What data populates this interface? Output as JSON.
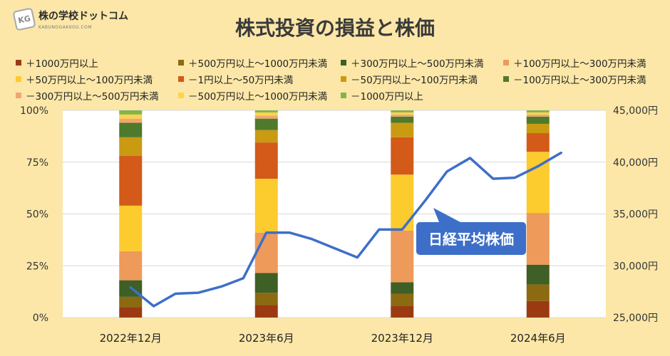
{
  "logo": {
    "badge": "KG",
    "name": "株の学校ドットコム",
    "sub": "KABUNOGAKKOU.COM"
  },
  "title": "株式投資の損益と株価",
  "legend": [
    {
      "label": "＋1000万円以上",
      "color": "#9B3A12"
    },
    {
      "label": "＋500万円以上～1000万円未満",
      "color": "#8C6A12"
    },
    {
      "label": "＋300万円以上～500万円未満",
      "color": "#3E5F26"
    },
    {
      "label": "＋100万円以上～300万円未満",
      "color": "#EE9A5A"
    },
    {
      "label": "＋50万円以上～100万円未満",
      "color": "#FCCB2E"
    },
    {
      "label": "－1円以上～50万円未満",
      "color": "#D35A19"
    },
    {
      "label": "－50万円以上～100万円未満",
      "color": "#C99A12"
    },
    {
      "label": "－100万円以上～300万円未満",
      "color": "#4E7A2C"
    },
    {
      "label": "－300万円以上～500万円未満",
      "color": "#F0A670"
    },
    {
      "label": "－500万円以上～1000万円未満",
      "color": "#FDD44A"
    },
    {
      "label": "－1000万円以上",
      "color": "#82B548"
    }
  ],
  "chart_data": {
    "type": "bar",
    "stacked": true,
    "categories": [
      "2022年12月",
      "2023年6月",
      "2023年12月",
      "2024年6月"
    ],
    "y_left": {
      "ticks": [
        "0%",
        "25%",
        "50%",
        "75%",
        "100%"
      ],
      "ylim": [
        0,
        100
      ]
    },
    "y_right": {
      "ticks": [
        "25,000円",
        "30,000円",
        "35,000円",
        "40,000円",
        "45,000円"
      ],
      "ylim": [
        25000,
        45000
      ]
    },
    "series": [
      {
        "name": "＋1000万円以上",
        "values": [
          5,
          6,
          5.5,
          8
        ]
      },
      {
        "name": "＋500万円以上～1000万円未満",
        "values": [
          5,
          6,
          6,
          8
        ]
      },
      {
        "name": "＋300万円以上～500万円未満",
        "values": [
          8,
          9.5,
          5.5,
          9.5
        ]
      },
      {
        "name": "＋100万円以上～300万円未満",
        "values": [
          14,
          19.5,
          25,
          25
        ]
      },
      {
        "name": "＋50万円以上～100万円未満",
        "values": [
          22,
          26,
          27,
          29.5
        ]
      },
      {
        "name": "－1円以上～50万円未満",
        "values": [
          24,
          17.5,
          18,
          9
        ]
      },
      {
        "name": "－50万円以上～100万円未満",
        "values": [
          9,
          6,
          7,
          4.5
        ]
      },
      {
        "name": "－100万円以上～300万円未満",
        "values": [
          7,
          5.5,
          3,
          3.5
        ]
      },
      {
        "name": "－300万円以上～500万円未満",
        "values": [
          2,
          1.5,
          1,
          1
        ]
      },
      {
        "name": "－500万円以上～1000万円未満",
        "values": [
          2,
          1.5,
          1,
          1
        ]
      },
      {
        "name": "－1000万円以上",
        "values": [
          2,
          1,
          1,
          1
        ]
      }
    ],
    "line": {
      "name": "日経平均株価",
      "color": "#3D6FC9",
      "points": [
        {
          "x": 0,
          "y": 27900
        },
        {
          "x": 0.17,
          "y": 26100
        },
        {
          "x": 0.33,
          "y": 27300
        },
        {
          "x": 0.5,
          "y": 27400
        },
        {
          "x": 0.67,
          "y": 28000
        },
        {
          "x": 0.83,
          "y": 28800
        },
        {
          "x": 1,
          "y": 33200
        },
        {
          "x": 1.17,
          "y": 33200
        },
        {
          "x": 1.33,
          "y": 32600
        },
        {
          "x": 1.5,
          "y": 31700
        },
        {
          "x": 1.67,
          "y": 30800
        },
        {
          "x": 1.83,
          "y": 33500
        },
        {
          "x": 2,
          "y": 33500
        },
        {
          "x": 2.17,
          "y": 36300
        },
        {
          "x": 2.33,
          "y": 39100
        },
        {
          "x": 2.5,
          "y": 40400
        },
        {
          "x": 2.67,
          "y": 38400
        },
        {
          "x": 2.83,
          "y": 38500
        },
        {
          "x": 3,
          "y": 39600
        },
        {
          "x": 3.17,
          "y": 40900
        }
      ]
    },
    "annotation": "日経平均株価",
    "grid": true
  }
}
